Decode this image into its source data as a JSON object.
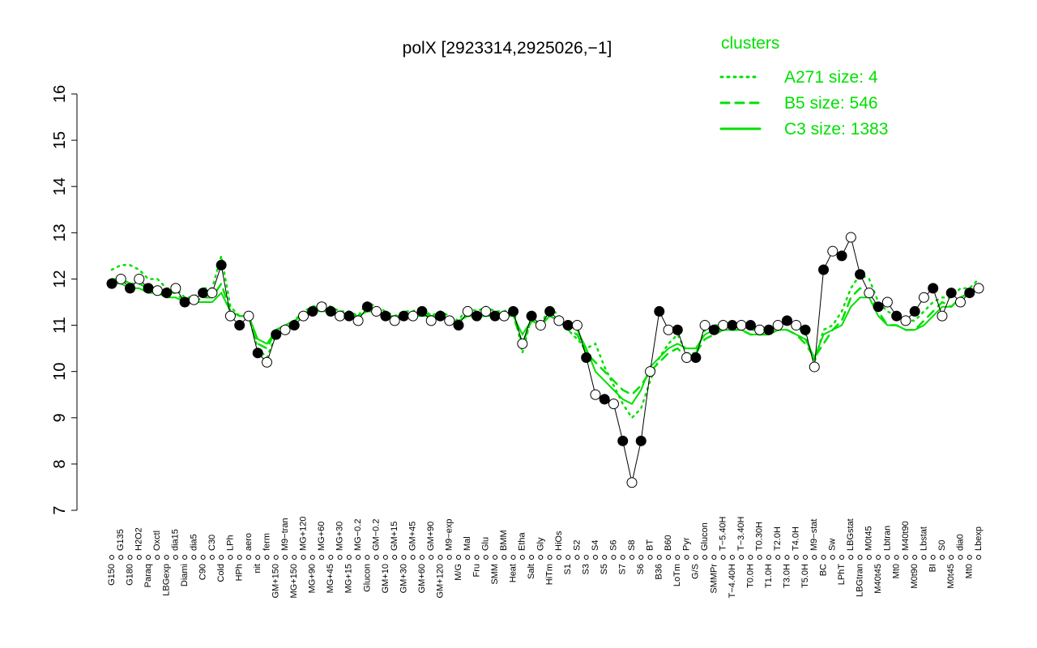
{
  "chart_data": {
    "type": "line",
    "title": "polX [2923314,2925026,−1]",
    "categories": [
      "G150",
      "G135",
      "G180",
      "H2O2",
      "Paraq",
      "Oxctl",
      "LBGexp",
      "dia15",
      "Diami",
      "dia5",
      "C90",
      "C30",
      "Cold",
      "LPh",
      "HPh",
      "aero",
      "nit",
      "ferm",
      "GM+150",
      "M9−tran",
      "MG+150",
      "MG+120",
      "MG+90",
      "MG+60",
      "MG+45",
      "MG+30",
      "MG+15",
      "MG−0.2",
      "Glucon",
      "GM−0.2",
      "GM+10",
      "GM+15",
      "GM+30",
      "GM+45",
      "GM+60",
      "GM+90",
      "GM+120",
      "M9−exp",
      "M/G",
      "Mal",
      "Fru",
      "Glu",
      "SMM",
      "BMM",
      "Heat",
      "Etha",
      "Salt",
      "Gly",
      "HiTm",
      "HiOs",
      "S1",
      "S2",
      "S3",
      "S4",
      "S5",
      "S6",
      "S7",
      "S8",
      "S6",
      "BT",
      "B36",
      "B60",
      "LoTm",
      "Pyr",
      "G/S",
      "Glucon",
      "SMMPr",
      "T−5.40H",
      "T−4.40H",
      "T−3.40H",
      "T0.0H",
      "T0.30H",
      "T1.0H",
      "T2.0H",
      "T3.0H",
      "T4.0H",
      "T5.0H",
      "M9−stat",
      "BC",
      "Sw",
      "LPhT",
      "LBGstat",
      "LBGtran",
      "M0t45",
      "M40t45",
      "Lbtran",
      "Mt0",
      "M40t90",
      "M0t90",
      "Lbstat",
      "BI",
      "S0",
      "M0t45",
      "dia0",
      "Mt0",
      "Lbexp"
    ],
    "values": [
      11.9,
      12.0,
      11.8,
      12.0,
      11.8,
      11.75,
      11.7,
      11.8,
      11.5,
      11.55,
      11.7,
      11.7,
      12.3,
      11.2,
      11.0,
      11.2,
      10.4,
      10.2,
      10.8,
      10.9,
      11.0,
      11.2,
      11.3,
      11.4,
      11.3,
      11.2,
      11.2,
      11.1,
      11.4,
      11.3,
      11.2,
      11.1,
      11.2,
      11.2,
      11.3,
      11.1,
      11.2,
      11.1,
      11.0,
      11.3,
      11.2,
      11.3,
      11.2,
      11.2,
      11.3,
      10.6,
      11.2,
      11.0,
      11.3,
      11.1,
      11.0,
      11.0,
      10.3,
      9.5,
      9.4,
      9.3,
      8.5,
      7.6,
      8.5,
      10.0,
      11.3,
      10.9,
      10.9,
      10.3,
      10.3,
      11.0,
      10.9,
      11.0,
      11.0,
      11.0,
      11.0,
      10.9,
      10.9,
      11.0,
      11.1,
      11.0,
      10.9,
      10.1,
      12.2,
      12.6,
      12.5,
      12.9,
      12.1,
      11.7,
      11.4,
      11.5,
      11.2,
      11.1,
      11.3,
      11.6,
      11.8,
      11.2,
      11.7,
      11.5,
      11.7,
      11.8
    ],
    "legend_title": "clusters",
    "legend": "top-right",
    "series": [
      {
        "name": "A271 size: 4",
        "color": "#00e000",
        "dash": "dotted",
        "values": [
          12.2,
          12.3,
          12.3,
          12.2,
          12.0,
          12.0,
          11.8,
          11.8,
          11.6,
          11.6,
          11.8,
          11.8,
          12.5,
          11.4,
          11.2,
          11.2,
          10.5,
          10.3,
          10.8,
          10.9,
          11.1,
          11.3,
          11.4,
          11.5,
          11.4,
          11.3,
          11.3,
          11.2,
          11.5,
          11.4,
          11.3,
          11.2,
          11.3,
          11.3,
          11.4,
          11.2,
          11.3,
          11.2,
          11.1,
          11.4,
          11.3,
          11.4,
          11.3,
          11.3,
          11.4,
          10.4,
          11.2,
          11.0,
          11.4,
          11.2,
          10.9,
          10.7,
          10.5,
          10.6,
          10.1,
          9.7,
          9.3,
          9.0,
          9.2,
          9.8,
          10.3,
          10.6,
          10.8,
          10.4,
          10.4,
          10.9,
          11.0,
          11.0,
          11.0,
          11.0,
          10.9,
          10.9,
          10.9,
          11.0,
          11.1,
          11.0,
          10.8,
          10.2,
          10.9,
          11.0,
          11.3,
          11.8,
          12.1,
          12.0,
          11.5,
          11.3,
          11.2,
          11.1,
          11.1,
          11.3,
          11.5,
          11.6,
          11.6,
          11.8,
          11.8,
          12.0
        ]
      },
      {
        "name": "B5 size: 546",
        "color": "#00e000",
        "dash": "dashed",
        "values": [
          12.0,
          12.0,
          11.9,
          11.9,
          11.8,
          11.8,
          11.7,
          11.7,
          11.5,
          11.5,
          11.6,
          11.6,
          11.9,
          11.3,
          11.2,
          11.2,
          10.6,
          10.5,
          10.9,
          11.0,
          11.1,
          11.2,
          11.4,
          11.4,
          11.3,
          11.3,
          11.2,
          11.2,
          11.3,
          11.3,
          11.2,
          11.2,
          11.2,
          11.2,
          11.3,
          11.2,
          11.2,
          11.1,
          11.1,
          11.2,
          11.2,
          11.2,
          11.2,
          11.3,
          11.2,
          10.6,
          11.1,
          11.0,
          11.2,
          11.1,
          10.9,
          10.8,
          10.4,
          10.2,
          10.0,
          9.8,
          9.6,
          9.5,
          9.7,
          10.0,
          10.2,
          10.4,
          10.5,
          10.3,
          10.4,
          10.7,
          10.8,
          10.9,
          10.9,
          10.9,
          10.8,
          10.8,
          10.8,
          10.9,
          10.9,
          10.8,
          10.6,
          10.3,
          10.6,
          10.9,
          11.1,
          11.6,
          11.8,
          11.7,
          11.3,
          11.0,
          11.0,
          10.9,
          10.9,
          11.1,
          11.3,
          11.5,
          11.4,
          11.6,
          11.7,
          11.9
        ]
      },
      {
        "name": "C3 size: 1383",
        "color": "#00e000",
        "dash": "solid",
        "values": [
          11.9,
          11.9,
          11.8,
          11.8,
          11.7,
          11.7,
          11.6,
          11.6,
          11.5,
          11.5,
          11.5,
          11.5,
          11.7,
          11.3,
          11.2,
          11.2,
          10.7,
          10.6,
          10.9,
          11.0,
          11.1,
          11.2,
          11.3,
          11.3,
          11.3,
          11.2,
          11.2,
          11.2,
          11.3,
          11.3,
          11.2,
          11.2,
          11.2,
          11.2,
          11.2,
          11.2,
          11.2,
          11.1,
          11.1,
          11.2,
          11.2,
          11.2,
          11.2,
          11.2,
          11.2,
          10.8,
          11.1,
          11.0,
          11.2,
          11.1,
          11.0,
          10.9,
          10.5,
          10.0,
          9.8,
          9.6,
          9.4,
          9.3,
          9.6,
          10.1,
          10.3,
          10.5,
          10.6,
          10.5,
          10.5,
          10.8,
          10.9,
          10.9,
          10.9,
          10.9,
          10.8,
          10.8,
          10.8,
          10.9,
          10.9,
          10.8,
          10.7,
          10.3,
          10.8,
          10.9,
          11.0,
          11.4,
          11.6,
          11.6,
          11.2,
          11.0,
          11.0,
          10.9,
          10.9,
          11.0,
          11.2,
          11.4,
          11.4,
          11.6,
          11.7,
          11.9
        ]
      }
    ],
    "ylim": [
      7,
      16
    ],
    "yticks": [
      7,
      8,
      9,
      10,
      11,
      12,
      13,
      14,
      15,
      16
    ]
  }
}
